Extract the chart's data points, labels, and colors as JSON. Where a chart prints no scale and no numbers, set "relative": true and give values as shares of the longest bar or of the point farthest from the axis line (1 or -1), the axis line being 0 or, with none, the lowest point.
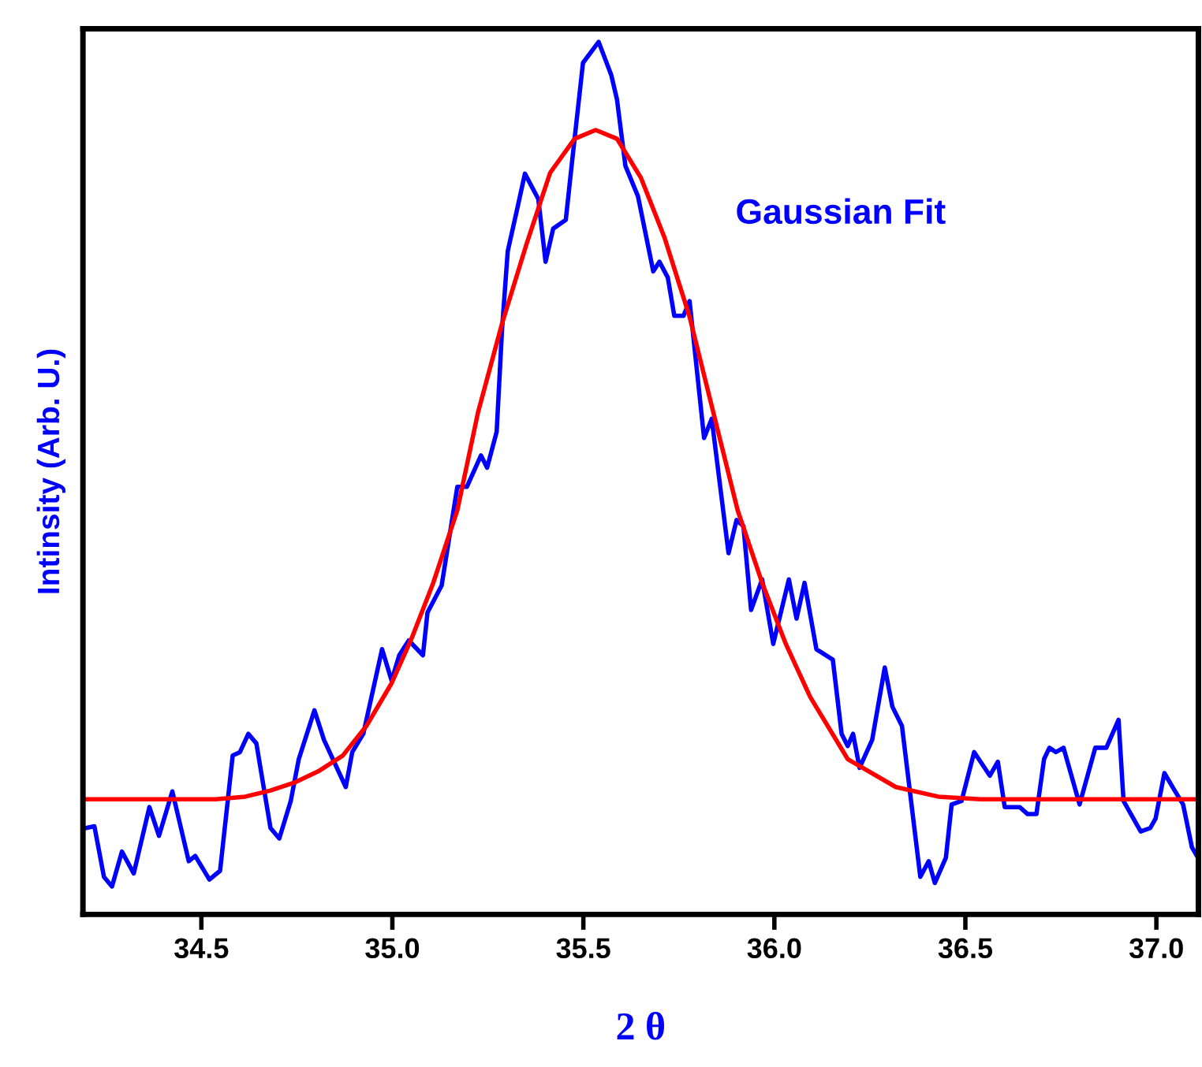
{
  "chart_data": {
    "type": "line",
    "relative": true,
    "xlabel": "2 θ",
    "ylabel": "Intinsity (Arb. U.)",
    "annotations": [
      "Gaussian Fit"
    ],
    "xlim": [
      34.19,
      37.11
    ],
    "xticks": [
      {
        "value": 34.5,
        "label": "34.5"
      },
      {
        "value": 35.0,
        "label": "35.0"
      },
      {
        "value": 35.5,
        "label": "35.5"
      },
      {
        "value": 36.0,
        "label": "36.0"
      },
      {
        "value": 36.5,
        "label": "36.5"
      },
      {
        "value": 37.0,
        "label": "37.0"
      }
    ],
    "tick_labels": "x",
    "grid": false,
    "legend": false,
    "marker": "none",
    "line_style": "solid",
    "series": [
      {
        "color": "#0000ff",
        "x": [
          34.198,
          34.22,
          34.245,
          34.266,
          34.292,
          34.323,
          34.364,
          34.389,
          34.424,
          34.467,
          34.484,
          34.521,
          34.549,
          34.582,
          34.601,
          34.623,
          34.644,
          34.681,
          34.704,
          34.734,
          34.755,
          34.796,
          34.821,
          34.878,
          34.895,
          34.924,
          34.973,
          34.998,
          35.018,
          35.043,
          35.08,
          35.092,
          35.129,
          35.17,
          35.195,
          35.232,
          35.248,
          35.273,
          35.287,
          35.302,
          35.327,
          35.347,
          35.382,
          35.401,
          35.421,
          35.454,
          35.47,
          35.499,
          35.54,
          35.573,
          35.588,
          35.61,
          35.643,
          35.683,
          35.699,
          35.721,
          35.738,
          35.762,
          35.778,
          35.816,
          35.836,
          35.88,
          35.901,
          35.919,
          35.939,
          35.968,
          35.997,
          36.038,
          36.058,
          36.079,
          36.11,
          36.153,
          36.176,
          36.192,
          36.206,
          36.223,
          36.256,
          36.289,
          36.309,
          36.334,
          36.382,
          36.404,
          36.42,
          36.449,
          36.464,
          36.49,
          36.523,
          36.564,
          36.585,
          36.603,
          36.642,
          36.663,
          36.686,
          36.706,
          36.72,
          36.737,
          36.757,
          36.799,
          36.84,
          36.869,
          36.901,
          36.914,
          36.959,
          36.984,
          36.998,
          37.021,
          37.045,
          37.07,
          37.093,
          37.105
        ],
        "values": [
          0.099,
          0.101,
          0.043,
          0.032,
          0.072,
          0.047,
          0.123,
          0.09,
          0.141,
          0.061,
          0.067,
          0.04,
          0.05,
          0.182,
          0.186,
          0.207,
          0.196,
          0.099,
          0.087,
          0.13,
          0.178,
          0.234,
          0.2,
          0.146,
          0.186,
          0.207,
          0.304,
          0.268,
          0.297,
          0.314,
          0.297,
          0.346,
          0.377,
          0.49,
          0.49,
          0.526,
          0.512,
          0.553,
          0.67,
          0.76,
          0.809,
          0.849,
          0.82,
          0.748,
          0.786,
          0.796,
          0.861,
          0.976,
          1.0,
          0.962,
          0.934,
          0.858,
          0.823,
          0.737,
          0.748,
          0.73,
          0.686,
          0.686,
          0.703,
          0.546,
          0.568,
          0.414,
          0.452,
          0.445,
          0.349,
          0.384,
          0.31,
          0.384,
          0.339,
          0.38,
          0.304,
          0.292,
          0.207,
          0.193,
          0.207,
          0.168,
          0.2,
          0.283,
          0.238,
          0.216,
          0.043,
          0.061,
          0.036,
          0.065,
          0.126,
          0.13,
          0.186,
          0.159,
          0.175,
          0.123,
          0.123,
          0.115,
          0.115,
          0.178,
          0.191,
          0.186,
          0.191,
          0.126,
          0.191,
          0.191,
          0.223,
          0.13,
          0.095,
          0.099,
          0.11,
          0.162,
          0.144,
          0.126,
          0.077,
          0.068
        ]
      },
      {
        "color": "#ff0000",
        "x": [
          34.19,
          34.537,
          34.615,
          34.681,
          34.743,
          34.806,
          34.87,
          34.932,
          34.998,
          35.051,
          35.107,
          35.17,
          35.224,
          35.287,
          35.351,
          35.413,
          35.477,
          35.532,
          35.588,
          35.651,
          35.713,
          35.778,
          35.841,
          35.904,
          35.968,
          36.03,
          36.094,
          36.192,
          36.318,
          36.429,
          36.54,
          37.11
        ],
        "values": [
          0.132,
          0.132,
          0.135,
          0.142,
          0.151,
          0.164,
          0.182,
          0.216,
          0.265,
          0.317,
          0.38,
          0.463,
          0.575,
          0.677,
          0.768,
          0.85,
          0.889,
          0.899,
          0.889,
          0.844,
          0.775,
          0.685,
          0.574,
          0.463,
          0.38,
          0.31,
          0.249,
          0.178,
          0.146,
          0.135,
          0.132,
          0.132
        ]
      }
    ]
  }
}
